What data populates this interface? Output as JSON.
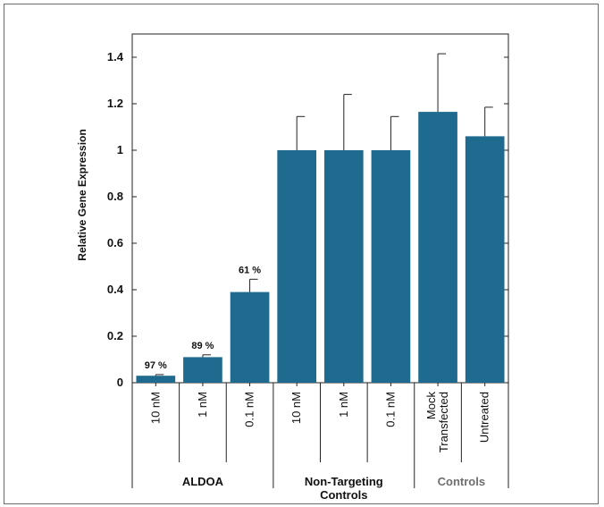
{
  "chart_data": {
    "type": "bar",
    "ylabel": "Relative Gene Expression",
    "ylim": [
      0,
      1.5
    ],
    "yticks": [
      "0",
      "0.2",
      "0.4",
      "0.6",
      "0.8",
      "1",
      "1.2",
      "1.4"
    ],
    "yticks_values": [
      0,
      0.2,
      0.4,
      0.6,
      0.8,
      1.0,
      1.2,
      1.4
    ],
    "categories": [
      {
        "label": "10 nM",
        "lines": [
          "10 nM"
        ]
      },
      {
        "label": "1 nM",
        "lines": [
          "1 nM"
        ]
      },
      {
        "label": "0.1 nM",
        "lines": [
          "0.1 nM"
        ]
      },
      {
        "label": "10 nM",
        "lines": [
          "10 nM"
        ]
      },
      {
        "label": "1 nM",
        "lines": [
          "1 nM"
        ]
      },
      {
        "label": "0.1 nM",
        "lines": [
          "0.1 nM"
        ]
      },
      {
        "label": "Mock Transfected",
        "lines": [
          "Mock",
          "Transfected"
        ]
      },
      {
        "label": "Untreated",
        "lines": [
          "Untreated"
        ]
      }
    ],
    "values": [
      0.03,
      0.11,
      0.39,
      1.0,
      1.0,
      1.0,
      1.165,
      1.06
    ],
    "error_upper": [
      0.035,
      0.12,
      0.445,
      1.145,
      1.24,
      1.145,
      1.415,
      1.185
    ],
    "data_labels": [
      "97 %",
      "89 %",
      "61 %",
      "",
      "",
      "",
      "",
      ""
    ],
    "groups": [
      {
        "lines": [
          "ALDOA"
        ],
        "start": 0,
        "end": 2,
        "color": "#111111"
      },
      {
        "lines": [
          "Non-Targeting",
          "Controls"
        ],
        "start": 3,
        "end": 5,
        "color": "#111111"
      },
      {
        "lines": [
          "Controls"
        ],
        "start": 6,
        "end": 7,
        "color": "#6e6e6e"
      }
    ],
    "bar_color": "#1f6a8f",
    "grid": false,
    "legend": "none"
  }
}
